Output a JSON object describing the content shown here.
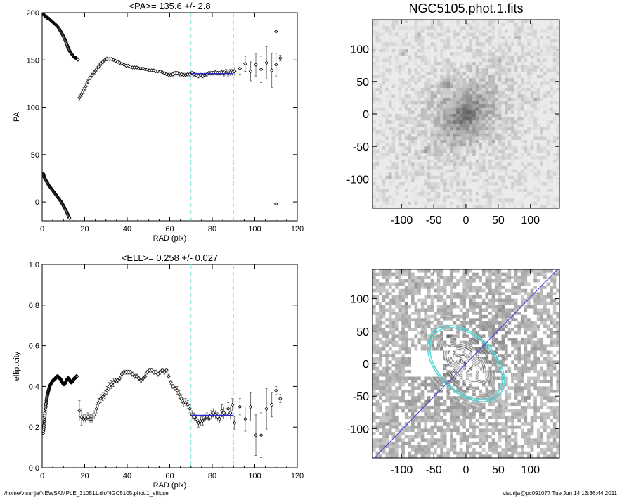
{
  "footer": {
    "path": "/home/visurija/NEWSAMPLE_310511.dir/NGC5105.phot.1_ellipse",
    "user_stamp": "visurija@pc091077  Tue Jun 14 13:36:44 2011"
  },
  "colors": {
    "profile_points": "#000000",
    "fit_line": "#2a2ad0",
    "boundary_lines": "#7fe0e0",
    "contours": "#ffffff",
    "selected_ellipse": "#5fd7d7",
    "major_axis": "#4a4ad8"
  },
  "chart_data": [
    {
      "id": "pa",
      "type": "scatter",
      "title": "<PA>= 135.6 +/-   2.8",
      "xlabel": "RAD (pix)",
      "ylabel": "PA",
      "xlim": [
        0,
        120
      ],
      "ylim": [
        -20,
        200
      ],
      "xticks": [
        "0",
        "20",
        "40",
        "60",
        "80",
        "100",
        "120"
      ],
      "yticks": [
        "0",
        "50",
        "100",
        "150",
        "200"
      ],
      "grid": false,
      "boundaries": [
        70,
        90
      ],
      "fit": {
        "x": [
          70,
          90
        ],
        "y": 135.6
      },
      "segments": [
        {
          "x": [
            0.5,
            1,
            2,
            3,
            4,
            5,
            6,
            7,
            8,
            9,
            10,
            11,
            12,
            13,
            14,
            15,
            16,
            17
          ],
          "y": [
            199,
            197,
            195,
            194,
            192,
            190,
            188,
            186,
            183,
            179,
            175,
            170,
            164,
            159,
            156,
            153,
            152,
            150
          ]
        },
        {
          "x": [
            0.5,
            1,
            2,
            3,
            4,
            5,
            6,
            7,
            8,
            9,
            10,
            11,
            12,
            13
          ],
          "y": [
            30,
            26,
            22,
            18,
            15,
            12,
            9,
            6,
            3,
            0,
            -4,
            -8,
            -13,
            -18
          ]
        }
      ],
      "points": {
        "x": [
          17.5,
          18.5,
          19.5,
          20.5,
          21.5,
          22.5,
          23.5,
          24.5,
          25.5,
          26.5,
          27.5,
          28.5,
          29.5,
          30.5,
          31.5,
          32.5,
          33.5,
          34.5,
          35.5,
          36.5,
          37.5,
          38.5,
          39.5,
          40.5,
          41.5,
          42.5,
          43.5,
          44.5,
          45.5,
          46.5,
          47.5,
          48.5,
          49.5,
          50.5,
          51.5,
          52.5,
          53.5,
          54.5,
          55.5,
          56.5,
          57.5,
          58.5,
          59.5,
          60.5,
          61.5,
          62.5,
          63.5,
          64.5,
          65.5,
          66.5,
          67.5,
          68.5,
          69.5,
          70.5,
          71.5,
          72.5,
          73.5,
          74.5,
          75.5,
          76.5,
          77.5,
          78.5,
          79.5,
          80.5,
          81.5,
          82.5,
          83.5,
          84.5,
          85.5,
          86.5,
          87.5,
          88.5,
          89.5,
          90.5,
          93,
          95.5,
          98,
          100.5,
          103,
          105.5,
          108,
          110,
          112
        ],
        "y": [
          110,
          114,
          118,
          122,
          127,
          131,
          134,
          137,
          140,
          143,
          146,
          148,
          150,
          151,
          151,
          151,
          150,
          149,
          148,
          147,
          146,
          145,
          144,
          144,
          143,
          142,
          142,
          142,
          141,
          141,
          141,
          140,
          140,
          139,
          139,
          139,
          138,
          138,
          138,
          137,
          136,
          135,
          134,
          134,
          135,
          136,
          136,
          135,
          135,
          134,
          134,
          135,
          135,
          136,
          135,
          134,
          133,
          134,
          133,
          134,
          135,
          136,
          136,
          136,
          137,
          136,
          136,
          137,
          136,
          137,
          136,
          137,
          137,
          138,
          141,
          146,
          138,
          145,
          140,
          147,
          139,
          145,
          152
        ],
        "err": [
          3,
          3,
          3,
          3,
          2,
          2,
          2,
          2,
          2,
          2,
          2,
          2,
          2,
          2,
          1,
          1,
          1,
          1,
          1,
          1,
          1,
          1,
          1,
          1,
          1,
          1,
          1,
          1,
          1,
          1,
          1,
          1,
          1,
          1,
          1,
          1,
          1,
          1,
          1,
          1,
          1,
          1,
          2,
          2,
          2,
          2,
          2,
          2,
          2,
          2,
          2,
          2,
          2,
          2,
          2,
          2,
          2,
          2,
          2,
          2,
          2,
          2,
          2,
          2,
          2,
          2,
          2,
          2,
          3,
          3,
          3,
          3,
          3,
          4,
          6,
          8,
          10,
          12,
          14,
          17,
          18,
          12,
          3
        ]
      },
      "outliers": {
        "x": [
          110,
          110
        ],
        "y": [
          180,
          -2
        ]
      }
    },
    {
      "id": "ell",
      "type": "scatter",
      "title": "<ELL>= 0.258 +/-  0.027",
      "xlabel": "RAD (pix)",
      "ylabel": "ellipticity",
      "xlim": [
        0,
        120
      ],
      "ylim": [
        0,
        1
      ],
      "xticks": [
        "0",
        "20",
        "40",
        "60",
        "80",
        "100",
        "120"
      ],
      "yticks": [
        "0.0",
        "0.2",
        "0.4",
        "0.6",
        "0.8",
        "1.0"
      ],
      "grid": false,
      "boundaries": [
        70,
        90
      ],
      "fit": {
        "x": [
          70,
          90
        ],
        "y": 0.258
      },
      "segments": [
        {
          "x": [
            0.5,
            1,
            1.5,
            2,
            2.5,
            3,
            3.5,
            4,
            4.5,
            5,
            5.5,
            6,
            6.5,
            7,
            7.5,
            8,
            8.5,
            9,
            9.5,
            10,
            10.5,
            11,
            11.5,
            12,
            12.5,
            13,
            13.5,
            14,
            14.5,
            15,
            15.5,
            16,
            16.5
          ],
          "y": [
            0.17,
            0.23,
            0.29,
            0.33,
            0.36,
            0.38,
            0.4,
            0.41,
            0.42,
            0.43,
            0.43,
            0.44,
            0.44,
            0.45,
            0.45,
            0.44,
            0.44,
            0.43,
            0.42,
            0.41,
            0.41,
            0.42,
            0.43,
            0.44,
            0.44,
            0.43,
            0.42,
            0.42,
            0.43,
            0.44,
            0.44,
            0.45,
            0.45
          ]
        }
      ],
      "points": {
        "x": [
          17.5,
          18.5,
          19.5,
          20.5,
          21.5,
          22.5,
          23.5,
          24.5,
          25.5,
          26.5,
          27.5,
          28.5,
          29.5,
          30.5,
          31.5,
          32.5,
          33.5,
          34.5,
          35.5,
          36.5,
          37.5,
          38.5,
          39.5,
          40.5,
          41.5,
          42.5,
          43.5,
          44.5,
          45.5,
          46.5,
          47.5,
          48.5,
          49.5,
          50.5,
          51.5,
          52.5,
          53.5,
          54.5,
          55.5,
          56.5,
          57.5,
          58.5,
          59.5,
          60.5,
          61.5,
          62.5,
          63.5,
          64.5,
          65.5,
          66.5,
          67.5,
          68.5,
          69.5,
          70.5,
          71.5,
          72.5,
          73.5,
          74.5,
          75.5,
          76.5,
          77.5,
          78.5,
          79.5,
          80.5,
          81.5,
          82.5,
          83.5,
          84.5,
          85.5,
          86.5,
          87.5,
          88.5,
          89.5,
          90.5,
          93,
          95.5,
          98,
          100.5,
          103,
          105.5,
          108,
          110,
          112
        ],
        "y": [
          0.28,
          0.25,
          0.24,
          0.24,
          0.25,
          0.24,
          0.24,
          0.26,
          0.29,
          0.32,
          0.34,
          0.35,
          0.36,
          0.38,
          0.4,
          0.41,
          0.42,
          0.43,
          0.43,
          0.44,
          0.46,
          0.47,
          0.47,
          0.47,
          0.47,
          0.46,
          0.45,
          0.45,
          0.44,
          0.43,
          0.44,
          0.45,
          0.47,
          0.48,
          0.48,
          0.47,
          0.47,
          0.46,
          0.47,
          0.48,
          0.47,
          0.48,
          0.45,
          0.42,
          0.4,
          0.39,
          0.38,
          0.36,
          0.34,
          0.32,
          0.32,
          0.31,
          0.29,
          0.26,
          0.25,
          0.24,
          0.22,
          0.23,
          0.23,
          0.24,
          0.25,
          0.24,
          0.26,
          0.27,
          0.26,
          0.25,
          0.24,
          0.28,
          0.27,
          0.26,
          0.29,
          0.27,
          0.31,
          0.22,
          0.3,
          0.24,
          0.3,
          0.16,
          0.16,
          0.29,
          0.31,
          0.38,
          0.34
        ],
        "err": [
          0.05,
          0.04,
          0.02,
          0.02,
          0.02,
          0.02,
          0.02,
          0.02,
          0.02,
          0.02,
          0.02,
          0.02,
          0.02,
          0.02,
          0.02,
          0.02,
          0.02,
          0.01,
          0.01,
          0.01,
          0.01,
          0.01,
          0.01,
          0.01,
          0.01,
          0.01,
          0.01,
          0.01,
          0.01,
          0.01,
          0.01,
          0.01,
          0.01,
          0.01,
          0.01,
          0.01,
          0.01,
          0.01,
          0.01,
          0.01,
          0.01,
          0.01,
          0.01,
          0.01,
          0.01,
          0.01,
          0.02,
          0.02,
          0.02,
          0.02,
          0.02,
          0.02,
          0.02,
          0.02,
          0.02,
          0.02,
          0.02,
          0.02,
          0.02,
          0.02,
          0.02,
          0.02,
          0.02,
          0.02,
          0.02,
          0.02,
          0.02,
          0.03,
          0.03,
          0.03,
          0.03,
          0.03,
          0.03,
          0.03,
          0.04,
          0.06,
          0.07,
          0.1,
          0.11,
          0.1,
          0.06,
          0.02,
          0.02
        ]
      }
    },
    {
      "id": "image-top",
      "type": "heatmap",
      "title": "NGC5105.phot.1.fits",
      "xlim": [
        -145,
        145
      ],
      "ylim": [
        -145,
        145
      ],
      "xticks": [
        "-100",
        "-50",
        "0",
        "50",
        "100"
      ],
      "yticks": [
        "-100",
        "-50",
        "0",
        "50",
        "100"
      ],
      "galaxy_center": [
        0,
        0
      ]
    },
    {
      "id": "image-bottom",
      "type": "heatmap",
      "title": "",
      "xlim": [
        -145,
        145
      ],
      "ylim": [
        -145,
        145
      ],
      "xticks": [
        "-100",
        "-50",
        "0",
        "50",
        "100"
      ],
      "yticks": [
        "-100",
        "-50",
        "0",
        "50",
        "100"
      ],
      "major_axis_pa": 135.6
    }
  ]
}
